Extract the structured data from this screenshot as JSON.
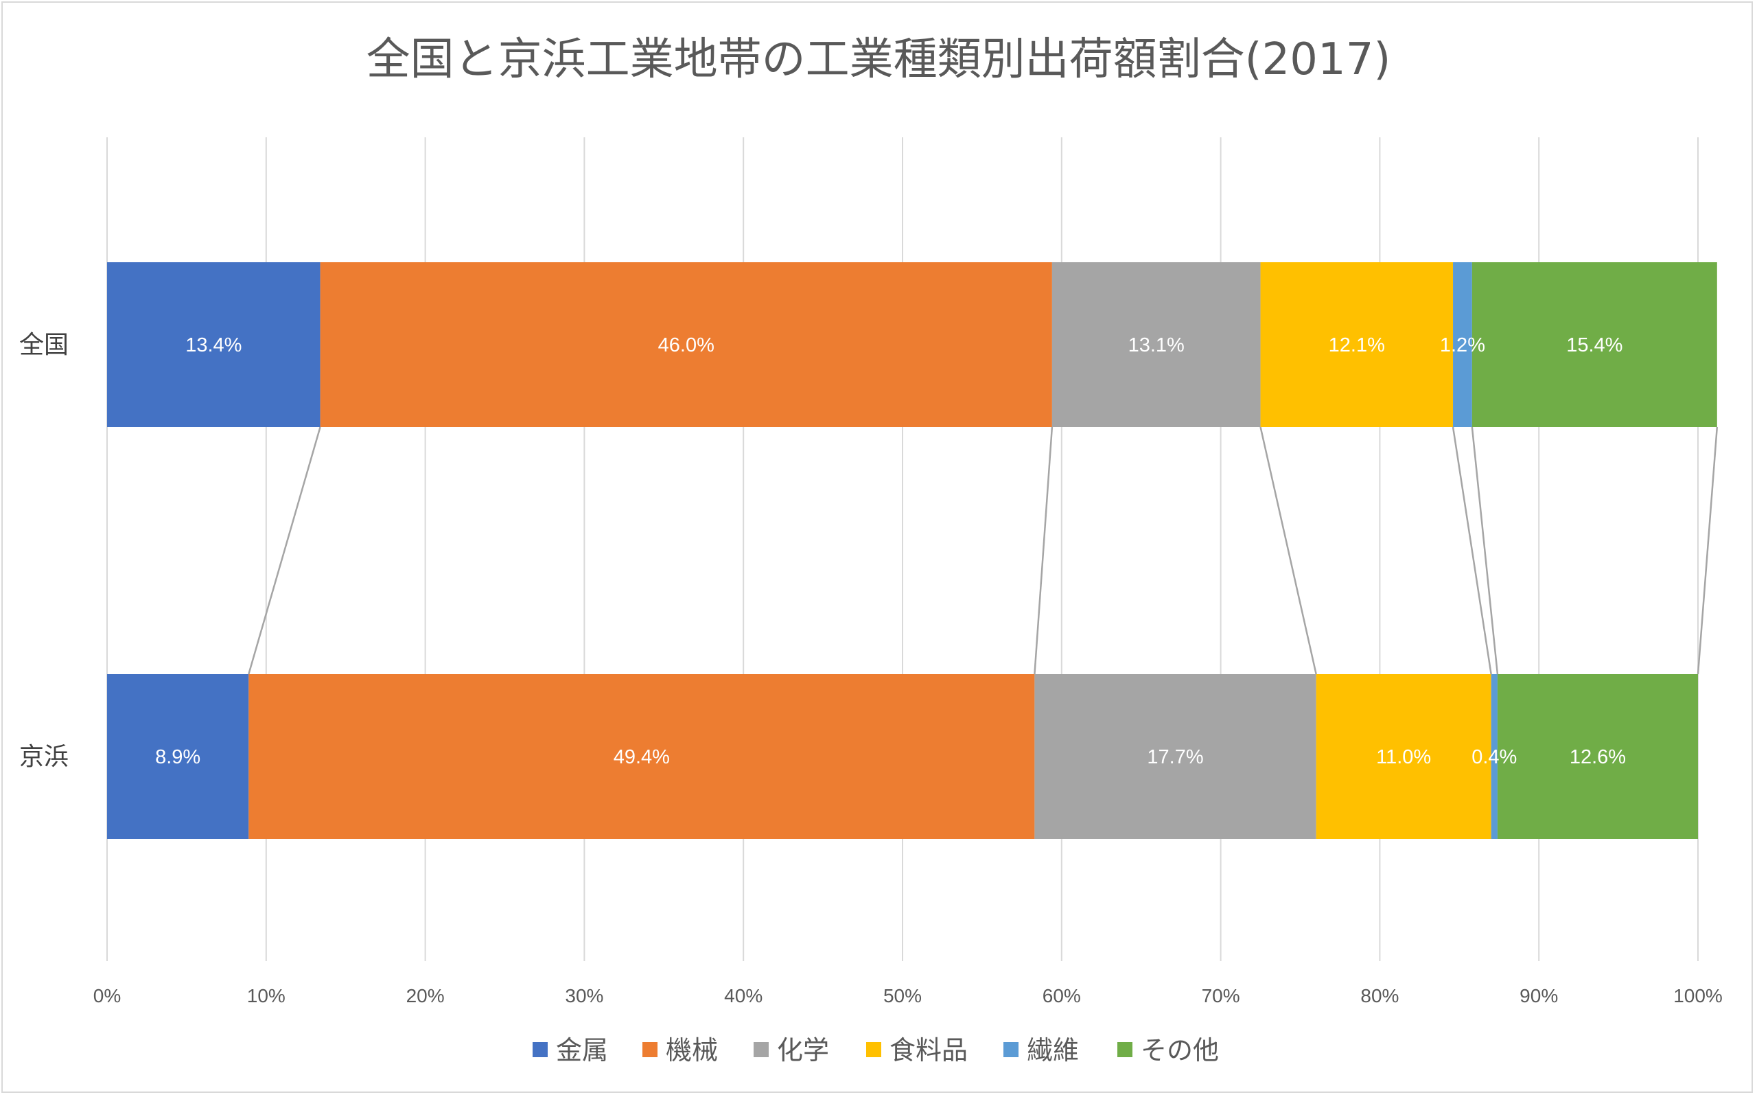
{
  "chart_data": {
    "type": "bar",
    "orientation": "horizontal",
    "stacked": "percent",
    "title": "全国と京浜工業地帯の工業種類別出荷額割合(2017)",
    "categories": [
      "全国",
      "京浜"
    ],
    "series": [
      {
        "name": "金属",
        "color": "#4472C4",
        "values": [
          13.4,
          8.9
        ],
        "labels": [
          "13.4%",
          "8.9%"
        ]
      },
      {
        "name": "機械",
        "color": "#ED7D31",
        "values": [
          46.0,
          49.4
        ],
        "labels": [
          "46.0%",
          "49.4%"
        ]
      },
      {
        "name": "化学",
        "color": "#A5A5A5",
        "values": [
          13.1,
          17.7
        ],
        "labels": [
          "13.1%",
          "17.7%"
        ]
      },
      {
        "name": "食料品",
        "color": "#FFC000",
        "values": [
          12.1,
          11.0
        ],
        "labels": [
          "12.1%",
          "11.0%"
        ]
      },
      {
        "name": "繊維",
        "color": "#5B9BD5",
        "values": [
          1.2,
          0.4
        ],
        "labels": [
          "1.2%",
          "0.4%"
        ]
      },
      {
        "name": "その他",
        "color": "#70AD47",
        "values": [
          15.4,
          12.6
        ],
        "labels": [
          "15.4%",
          "12.6%"
        ]
      }
    ],
    "xlim": [
      0,
      100
    ],
    "xticks": [
      "0%",
      "10%",
      "20%",
      "30%",
      "40%",
      "50%",
      "60%",
      "70%",
      "80%",
      "90%",
      "100%"
    ],
    "gridlines": true,
    "series_lines": true,
    "legend": "bottom"
  }
}
